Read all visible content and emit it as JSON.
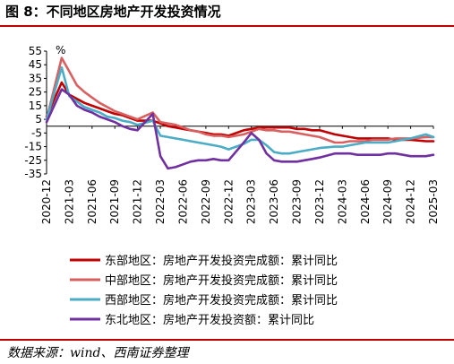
{
  "header": {
    "title": "图 8：不同地区房地产开发投资情况"
  },
  "footer": {
    "source": "数据来源：wind、西南证券整理"
  },
  "chart_data": {
    "type": "line",
    "title": "图 8：不同地区房地产开发投资情况",
    "ylabel": "%",
    "xlabel": "",
    "ylim": [
      -35,
      55
    ],
    "yticks": [
      55,
      45,
      35,
      25,
      15,
      5,
      -5,
      -15,
      -25,
      -35
    ],
    "grid": false,
    "legend_position": "bottom",
    "x": [
      "2020-12",
      "2021-01",
      "2021-02",
      "2021-03",
      "2021-04",
      "2021-05",
      "2021-06",
      "2021-07",
      "2021-08",
      "2021-09",
      "2021-10",
      "2021-11",
      "2021-12",
      "2022-01",
      "2022-02",
      "2022-03",
      "2022-04",
      "2022-05",
      "2022-06",
      "2022-07",
      "2022-08",
      "2022-09",
      "2022-10",
      "2022-11",
      "2022-12",
      "2023-01",
      "2023-02",
      "2023-03",
      "2023-04",
      "2023-05",
      "2023-06",
      "2023-07",
      "2023-08",
      "2023-09",
      "2023-10",
      "2023-11",
      "2023-12",
      "2024-01",
      "2024-02",
      "2024-03",
      "2024-04",
      "2024-05",
      "2024-06",
      "2024-07",
      "2024-08",
      "2024-09",
      "2024-10",
      "2024-11",
      "2024-12",
      "2025-01",
      "2025-02",
      "2025-03"
    ],
    "xtick_labels": [
      "2020-12",
      "2021-03",
      "2021-06",
      "2021-09",
      "2021-12",
      "2022-03",
      "2022-06",
      "2022-09",
      "2022-12",
      "2023-03",
      "2023-06",
      "2023-09",
      "2023-12",
      "2024-03",
      "2024-06",
      "2024-09",
      "2024-12",
      "2025-03"
    ],
    "series": [
      {
        "name": "东部地区：房地产开发投资完成额：累计同比",
        "color": "#c00000",
        "values": [
          7.0,
          null,
          32,
          23,
          20,
          17,
          15,
          13,
          11,
          9,
          8,
          6,
          4,
          null,
          4,
          2,
          0,
          -1,
          -2,
          -3,
          -4,
          -5,
          -6,
          -6,
          -7,
          null,
          -3,
          -2,
          -1,
          -1,
          -1,
          -1,
          -1,
          -2,
          -2,
          -3,
          -3,
          null,
          -6,
          -7,
          -8,
          -9,
          -9,
          -9,
          -9,
          -9,
          -10,
          -10,
          -10,
          null,
          -11,
          -11
        ]
      },
      {
        "name": "中部地区：房地产开发投资完成额：累计同比",
        "color": "#d86060",
        "values": [
          5,
          null,
          50,
          40,
          30,
          25,
          21,
          17,
          14,
          11,
          9,
          7,
          5,
          null,
          10,
          3,
          2,
          1,
          -1,
          -3,
          -4,
          -6,
          -7,
          -7,
          -8,
          null,
          -6,
          -4,
          -2,
          -3,
          -3,
          -4,
          -4,
          -5,
          -6,
          -7,
          -8,
          null,
          -12,
          -12,
          -11,
          -11,
          -11,
          -10,
          -10,
          -10,
          -9,
          -9,
          -9,
          null,
          -8,
          -8
        ]
      },
      {
        "name": "西部地区：房地产开发投资完成额：累计同比",
        "color": "#4bacc6",
        "values": [
          5,
          null,
          43,
          22,
          18,
          14,
          12,
          10,
          7,
          6,
          4,
          3,
          1,
          null,
          4,
          -7,
          -8,
          -9,
          -10,
          -11,
          -12,
          -13,
          -14,
          -15,
          -17,
          null,
          -13,
          -10,
          -10,
          -14,
          -19,
          -20,
          -20,
          -19,
          -18,
          -17,
          -16,
          null,
          -15,
          -15,
          -14,
          -13,
          -12,
          -12,
          -12,
          -12,
          -11,
          -10,
          -9,
          null,
          -6,
          -8
        ]
      },
      {
        "name": "东北地区：房地产开发投资额：累计同比",
        "color": "#7030a0",
        "values": [
          3,
          null,
          27,
          23,
          15,
          12,
          10,
          7,
          5,
          3,
          0,
          -2,
          -3,
          null,
          9,
          -22,
          -31,
          -30,
          -28,
          -26,
          -25,
          -25,
          -24,
          -25,
          -25,
          null,
          -12,
          -5,
          -10,
          -20,
          -25,
          -26,
          -26,
          -26,
          -25,
          -24,
          -23,
          null,
          -20,
          -20,
          -20,
          -21,
          -21,
          -21,
          -21,
          -20,
          -20,
          -21,
          -22,
          null,
          -22,
          -21
        ]
      }
    ]
  }
}
